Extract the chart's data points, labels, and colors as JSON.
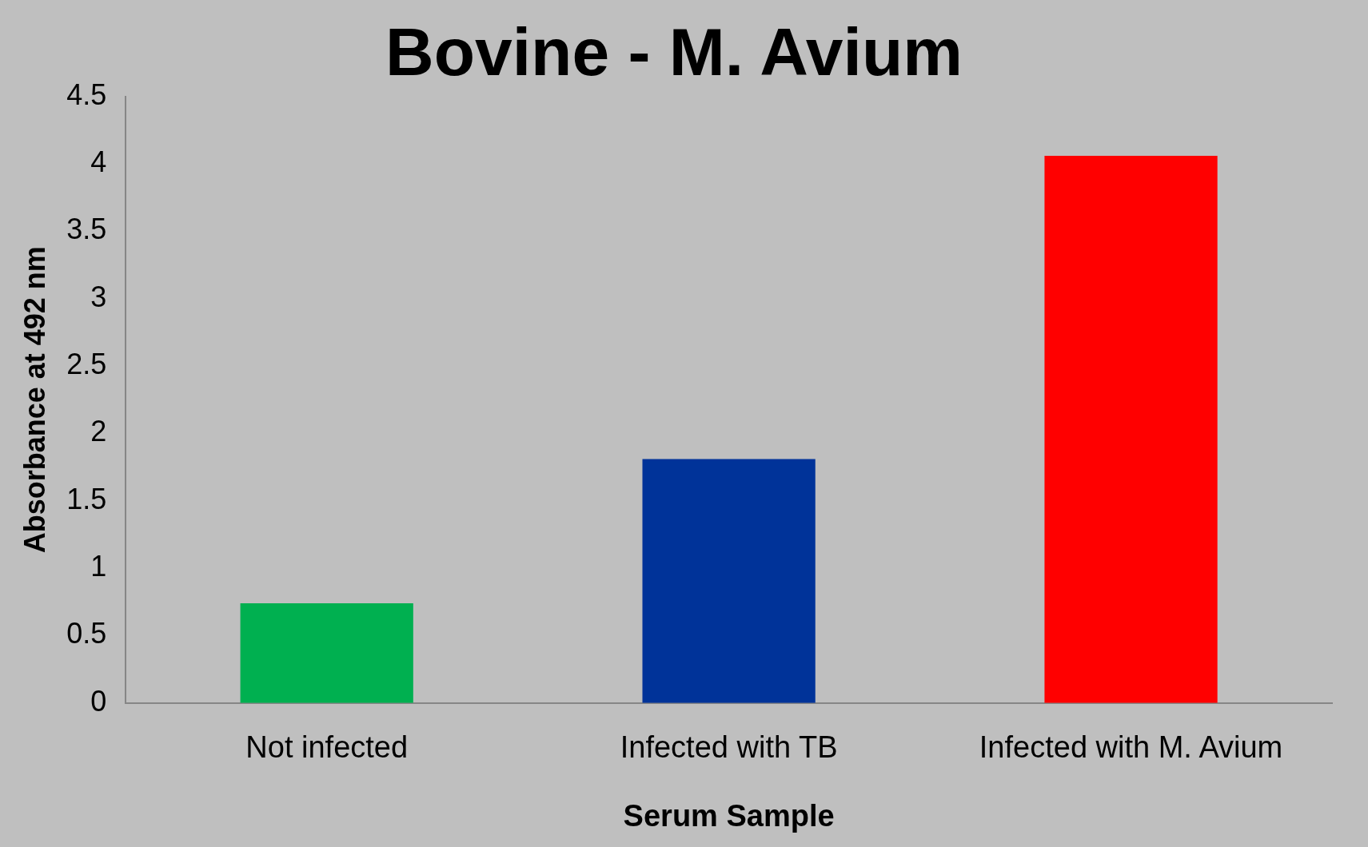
{
  "chart_data": {
    "type": "bar",
    "title": "Bovine - M. Avium",
    "xlabel": "Serum Sample",
    "ylabel": "Absorbance at 492 nm",
    "categories": [
      "Not infected",
      "Infected with TB",
      "Infected with M. Avium"
    ],
    "values": [
      0.74,
      1.81,
      4.06
    ],
    "colors": [
      "#00b050",
      "#003399",
      "#ff0000"
    ],
    "ylim": [
      0,
      4.5
    ],
    "yticks": [
      0,
      0.5,
      1,
      1.5,
      2,
      2.5,
      3,
      3.5,
      4,
      4.5
    ],
    "grid": false,
    "legend": false
  }
}
